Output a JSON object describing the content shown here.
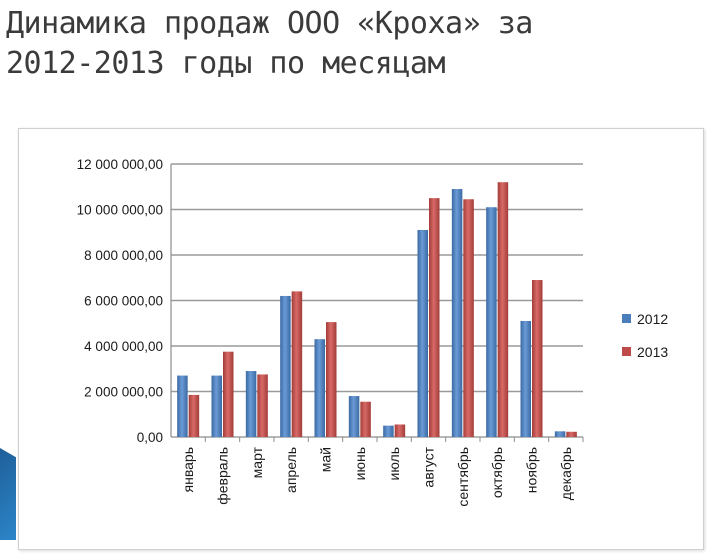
{
  "slide": {
    "title_line1": "Динамика продаж ООО «Кроха» за",
    "title_line2": "2012-2013 годы по месяцам"
  },
  "chart_data": {
    "type": "bar",
    "categories": [
      "январь",
      "февраль",
      "март",
      "апрель",
      "май",
      "июнь",
      "июль",
      "август",
      "сентябрь",
      "октябрь",
      "ноябрь",
      "декабрь"
    ],
    "series": [
      {
        "name": "2012",
        "color": "#4a7ebb",
        "values": [
          2700000,
          2700000,
          2900000,
          6200000,
          4300000,
          1800000,
          500000,
          9100000,
          10900000,
          10100000,
          5100000,
          250000
        ]
      },
      {
        "name": "2013",
        "color": "#be4b48",
        "values": [
          1850000,
          3750000,
          2750000,
          6400000,
          5050000,
          1550000,
          550000,
          10500000,
          10450000,
          11200000,
          6900000,
          230000
        ]
      }
    ],
    "y_ticks": [
      "0,00",
      "2 000 000,00",
      "4 000 000,00",
      "6 000 000,00",
      "8 000 000,00",
      "10 000 000,00",
      "12 000 000,00"
    ],
    "ylim": [
      0,
      12000000
    ],
    "grid": true,
    "legend_position": "right"
  }
}
